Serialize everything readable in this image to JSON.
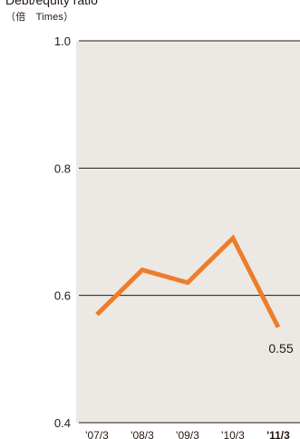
{
  "chart_data": {
    "type": "line",
    "title": "Debt/equity ratio",
    "unit_label": "（倍　Times）",
    "categories": [
      "'07/3",
      "'08/3",
      "'09/3",
      "'10/3",
      "'11/3"
    ],
    "highlight_category": "'11/3",
    "series": [
      {
        "values": [
          0.57,
          0.64,
          0.62,
          0.69,
          0.55
        ]
      }
    ],
    "ylim": [
      0.4,
      1.0
    ],
    "yticks": [
      "0.4",
      "0.6",
      "0.8",
      "1.0"
    ],
    "ytick_values": [
      0.4,
      0.6,
      0.8,
      1.0
    ],
    "data_labels": [
      {
        "index": 4,
        "text": "0.55"
      }
    ],
    "grid": true,
    "colors": {
      "line": "#ee7d2a",
      "plot_background": "#ece9e5",
      "gridline": "#231815",
      "text": "#231815"
    }
  }
}
